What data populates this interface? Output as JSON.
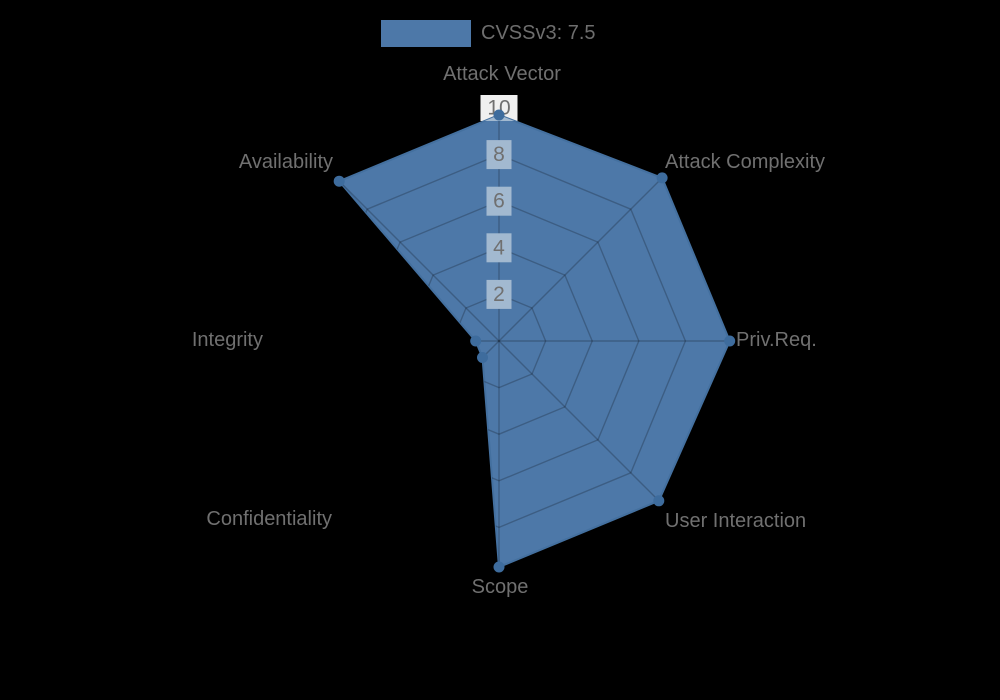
{
  "background": "#000000",
  "legend": {
    "label": "CVSSv3: 7.5",
    "swatch_color": "#4d78a8"
  },
  "chart_data": {
    "type": "radar",
    "title": "CVSSv3: 7.5",
    "legend_position": "top",
    "grid": true,
    "grid_shape": "polygon",
    "axes": [
      "Attack Vector",
      "Attack Complexity",
      "Priv.Req.",
      "User Interaction",
      "Scope",
      "Confidentiality",
      "Integrity",
      "Availability"
    ],
    "series": [
      {
        "name": "CVSSv3: 7.5",
        "values": [
          9.7,
          9.9,
          9.9,
          9.7,
          9.7,
          1.0,
          1.0,
          9.7
        ]
      }
    ],
    "radial_ticks": [
      2,
      4,
      6,
      8,
      10
    ],
    "rmin": 0,
    "rmax": 10,
    "colors": {
      "fill": "#4d78a8",
      "border": "#44709f",
      "point": "#3e6c9d",
      "grid_line": "rgba(0,0,0,0.22)",
      "axis_label": "#707070",
      "tick_text": "#707070",
      "tick_backdrop": "#f0f0f0",
      "tick_backdrop_over_fill": "#a2b9d0"
    }
  }
}
